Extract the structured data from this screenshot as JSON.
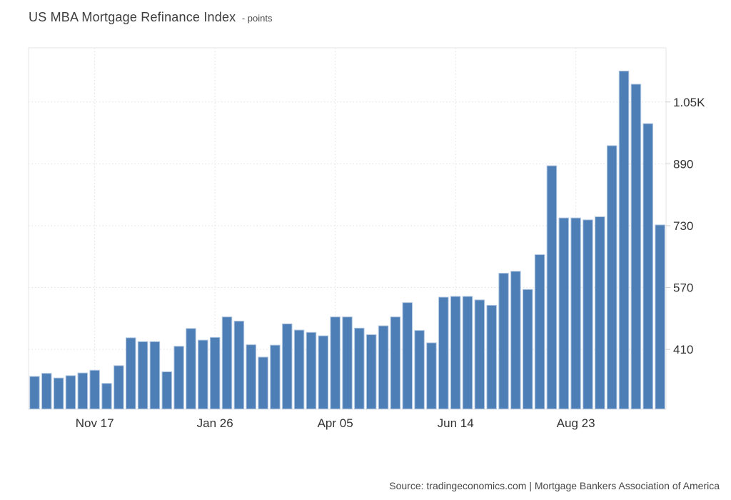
{
  "header": {
    "title": "US MBA Mortgage Refinance Index",
    "subtitle": "- points"
  },
  "footer": {
    "source_text": "Source: tradingeconomics.com | Mortgage Bankers Association of America"
  },
  "chart_data": {
    "type": "bar",
    "title": "US MBA Mortgage Refinance Index",
    "ylabel": "points",
    "xlabel": "",
    "frequency": "weekly",
    "legend_position": "none",
    "grid": true,
    "bar_color": "#4e7eb6",
    "bar_border_color": "#b0c6e0",
    "grid_color": "#e0e0e0",
    "border_color": "#e6e6e6",
    "tick_text_color": "#333333",
    "ylim": [
      255,
      1190
    ],
    "y_ticks": [
      410,
      570,
      730,
      890,
      1050
    ],
    "y_tick_labels": [
      "410",
      "570",
      "730",
      "890",
      "1.05K"
    ],
    "x_tick_labels": [
      "Nov 17",
      "Jan 26",
      "Apr 05",
      "Jun 14",
      "Aug 23"
    ],
    "x_tick_bar_indices": [
      5,
      15,
      25,
      35,
      45
    ],
    "values": [
      340,
      348,
      336,
      342,
      349,
      356,
      322,
      368,
      440,
      430,
      430,
      352,
      418,
      464,
      434,
      441,
      494,
      483,
      422,
      390,
      421,
      476,
      460,
      454,
      445,
      494,
      494,
      465,
      448,
      471,
      494,
      531,
      459,
      427,
      545,
      547,
      547,
      538,
      524,
      607,
      612,
      565,
      655,
      885,
      750,
      750,
      745,
      753,
      937,
      1130,
      1096,
      994,
      732
    ]
  }
}
